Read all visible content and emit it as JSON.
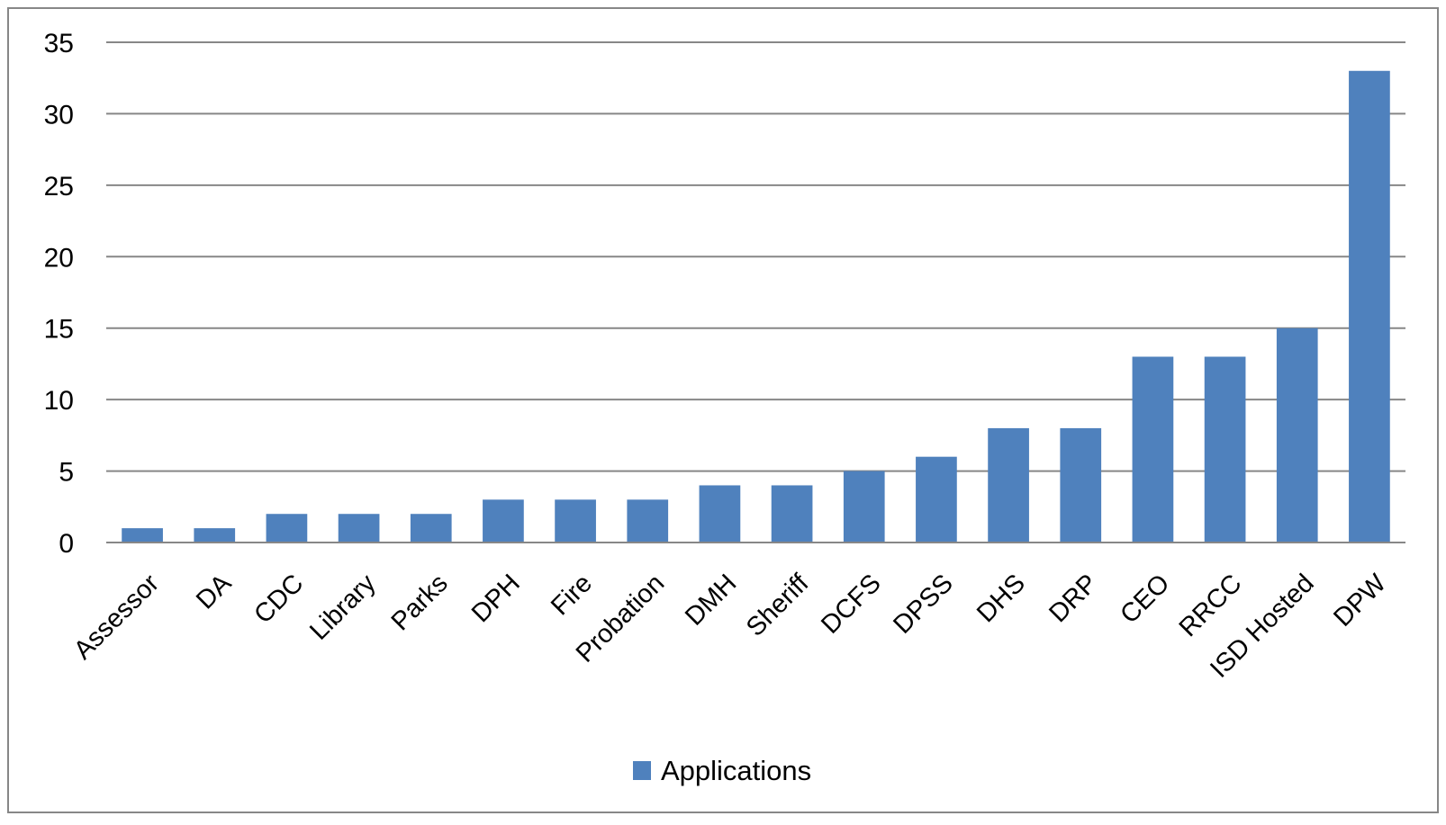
{
  "chart_data": {
    "type": "bar",
    "categories": [
      "Assessor",
      "DA",
      "CDC",
      "Library",
      "Parks",
      "DPH",
      "Fire",
      "Probation",
      "DMH",
      "Sheriff",
      "DCFS",
      "DPSS",
      "DHS",
      "DRP",
      "CEO",
      "RRCC",
      "ISD Hosted",
      "DPW"
    ],
    "series": [
      {
        "name": "Applications",
        "values": [
          1,
          1,
          2,
          2,
          2,
          3,
          3,
          3,
          4,
          4,
          5,
          6,
          8,
          8,
          13,
          13,
          15,
          33
        ],
        "color": "#4f81bd"
      }
    ],
    "title": "",
    "xlabel": "",
    "ylabel": "",
    "ylim": [
      0,
      35
    ],
    "yticks": [
      0,
      5,
      10,
      15,
      20,
      25,
      30,
      35
    ],
    "grid": true,
    "legend_position": "bottom",
    "gridline_color": "#878787",
    "frame_color": "#878787"
  }
}
